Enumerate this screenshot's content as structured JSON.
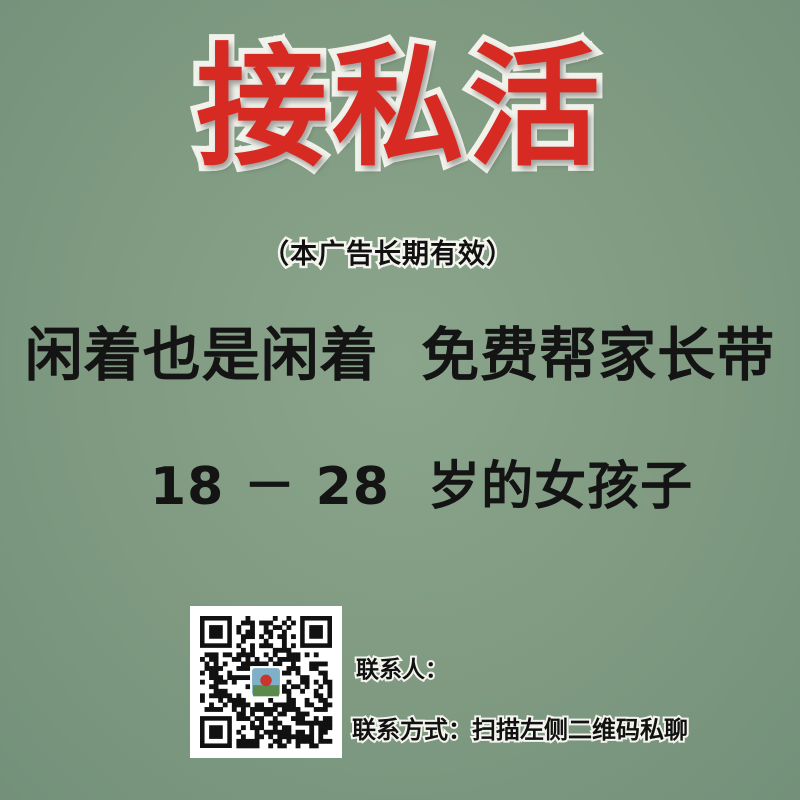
{
  "poster": {
    "title": "接私活",
    "subtitle": "（本广告长期有效）",
    "main_line": "闲着也是闲着  免费帮家长带",
    "age_line": "18 － 28  岁的女孩子",
    "contact_person_label": "联系人：",
    "contact_method": "联系方式：扫描左侧二维码私聊",
    "qr_code_icon": "qr-code",
    "qr_avatar_icon": "avatar-thumbnail"
  },
  "colors": {
    "background": "#819c83",
    "title_red": "#d62a22",
    "outline_white": "#f2f2ec",
    "text_black": "#141414"
  }
}
